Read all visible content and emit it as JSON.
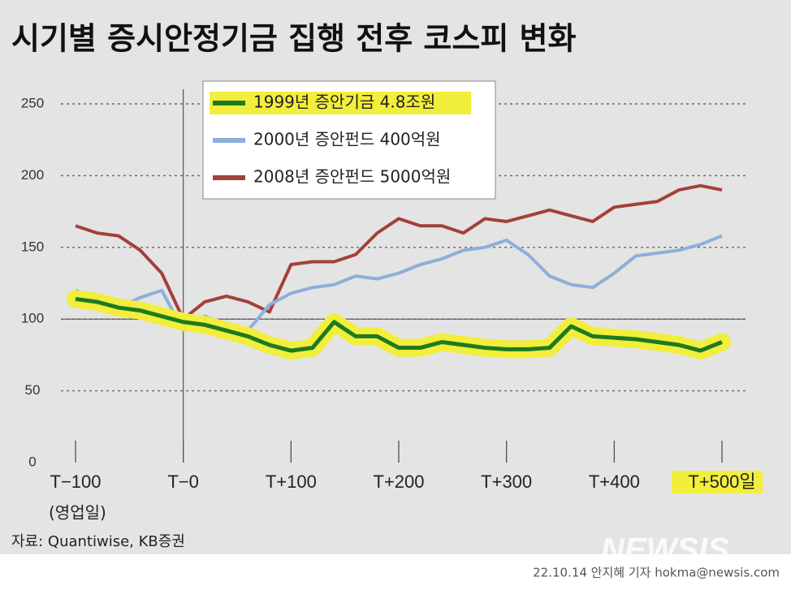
{
  "chart_data": {
    "type": "line",
    "title": "시기별 증시안정기금 집행 전후 코스피 변화",
    "x_label": "(영업일)",
    "source": "자료: Quantiwise, KB증권",
    "byline": "22.10.14 안지혜 기자 hokma@newsis.com",
    "watermark": "NEWSIS",
    "x": [
      -100,
      -80,
      -60,
      -40,
      -20,
      0,
      20,
      40,
      60,
      80,
      100,
      120,
      140,
      160,
      180,
      200,
      220,
      240,
      260,
      280,
      300,
      320,
      340,
      360,
      380,
      400,
      420,
      440,
      460,
      480,
      500
    ],
    "series": [
      {
        "name": "1999년 증안기금 4.8조원",
        "color": "#1e7a1e",
        "highlight": "#f2ee3c",
        "values": [
          114,
          112,
          108,
          106,
          102,
          98,
          96,
          92,
          88,
          82,
          78,
          80,
          98,
          88,
          88,
          80,
          80,
          84,
          82,
          80,
          79,
          79,
          80,
          95,
          88,
          87,
          86,
          84,
          82,
          78,
          84
        ]
      },
      {
        "name": "2000년 증안펀드 400억원",
        "color": "#8eaedb",
        "values": [
          120,
          115,
          108,
          115,
          120,
          92,
          102,
          96,
          92,
          110,
          118,
          122,
          124,
          130,
          128,
          132,
          138,
          142,
          148,
          150,
          155,
          145,
          130,
          124,
          122,
          132,
          144,
          146,
          148,
          152,
          158
        ]
      },
      {
        "name": "2008년 증안펀드 5000억원",
        "color": "#a3403a",
        "values": [
          165,
          160,
          158,
          148,
          132,
          100,
          112,
          116,
          112,
          105,
          138,
          140,
          140,
          145,
          160,
          170,
          165,
          165,
          160,
          170,
          168,
          172,
          176,
          172,
          168,
          178,
          180,
          182,
          190,
          193,
          190
        ]
      }
    ],
    "xlim": [
      -100,
      500
    ],
    "xticks": [
      {
        "value": -100,
        "label": "T−100"
      },
      {
        "value": 0,
        "label": "T−0"
      },
      {
        "value": 100,
        "label": "T+100"
      },
      {
        "value": 200,
        "label": "T+200"
      },
      {
        "value": 300,
        "label": "T+300"
      },
      {
        "value": 400,
        "label": "T+400"
      },
      {
        "value": 500,
        "label": "T+500일"
      }
    ],
    "ylim": [
      0,
      250
    ],
    "yticks": [
      0,
      50,
      100,
      150,
      200,
      250
    ],
    "grid": true
  }
}
